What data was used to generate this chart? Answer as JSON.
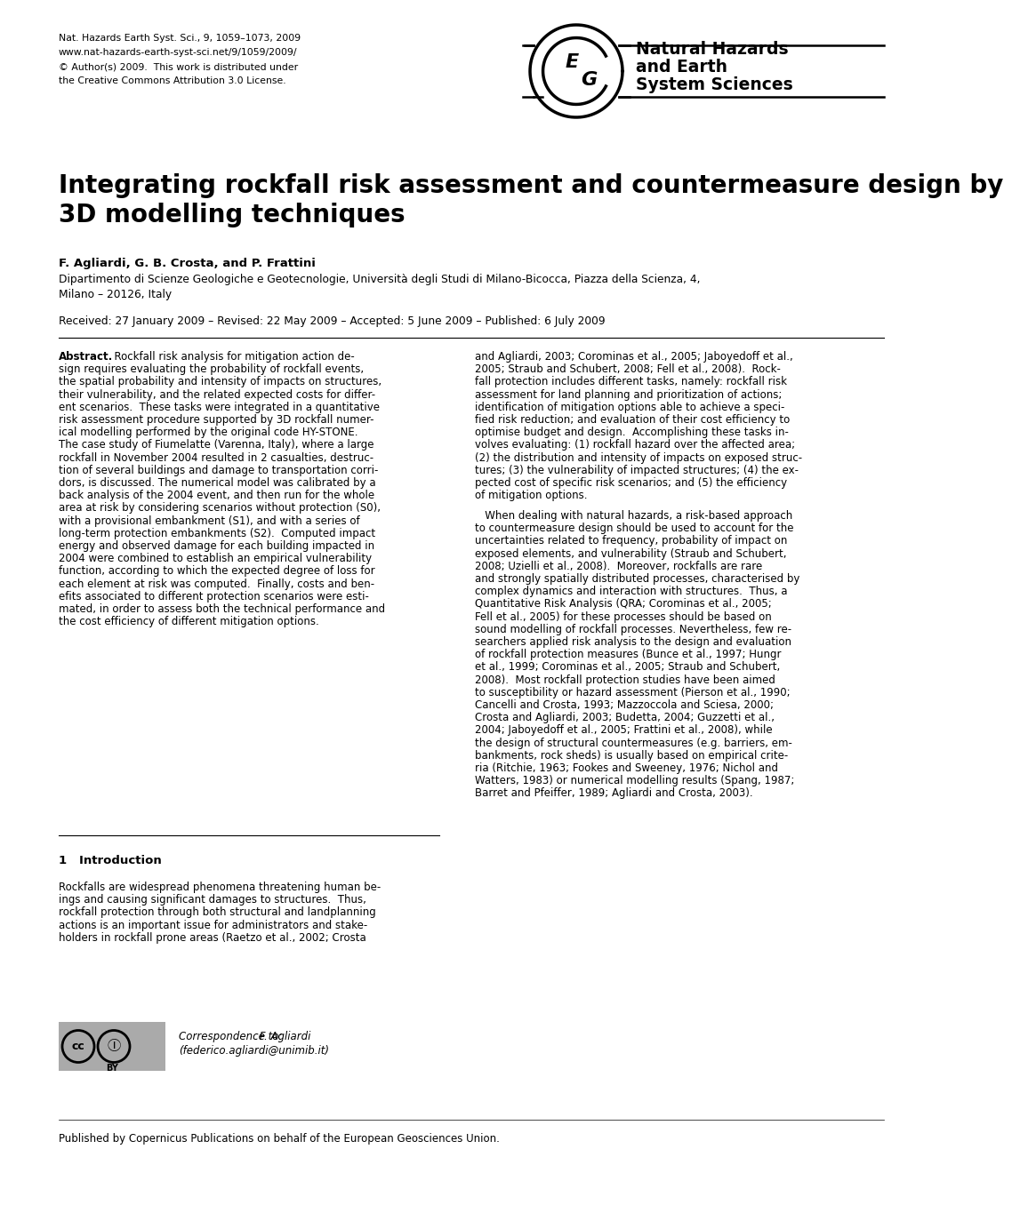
{
  "background_color": "#ffffff",
  "header_left_lines": [
    "Nat. Hazards Earth Syst. Sci., 9, 1059–1073, 2009",
    "www.nat-hazards-earth-syst-sci.net/9/1059/2009/",
    "© Author(s) 2009.  This work is distributed under",
    "the Creative Commons Attribution 3.0 License."
  ],
  "journal_name_lines": [
    "Natural Hazards",
    "and Earth",
    "System Sciences"
  ],
  "paper_title": "Integrating rockfall risk assessment and countermeasure design by\n3D modelling techniques",
  "authors": "F. Agliardi, G. B. Crosta, and P. Frattini",
  "affiliation_lines": [
    "Dipartimento di Scienze Geologiche e Geotecnologie, Università degli Studi di Milano-Bicocca, Piazza della Scienza, 4,",
    "Milano – 20126, Italy"
  ],
  "received_line": "Received: 27 January 2009 – Revised: 22 May 2009 – Accepted: 5 June 2009 – Published: 6 July 2009",
  "abstract_label": "Abstract.",
  "abstract_left_rest": "  Rockfall risk analysis for mitigation action de-\nsign requires evaluating the probability of rockfall events,\nthe spatial probability and intensity of impacts on structures,\ntheir vulnerability, and the related expected costs for differ-\nent scenarios.  These tasks were integrated in a quantitative\nrisk assessment procedure supported by 3D rockfall numer-\nical modelling performed by the original code HY-STONE.\nThe case study of Fiumelatte (Varenna, Italy), where a large\nrockfall in November 2004 resulted in 2 casualties, destruc-\ntion of several buildings and damage to transportation corri-\ndors, is discussed. The numerical model was calibrated by a\nback analysis of the 2004 event, and then run for the whole\narea at risk by considering scenarios without protection (S0),\nwith a provisional embankment (S1), and with a series of\nlong-term protection embankments (S2).  Computed impact\nenergy and observed damage for each building impacted in\n2004 were combined to establish an empirical vulnerability\nfunction, according to which the expected degree of loss for\neach element at risk was computed.  Finally, costs and ben-\nefits associated to different protection scenarios were esti-\nmated, in order to assess both the technical performance and\nthe cost efficiency of different mitigation options.",
  "abstract_right": "and Agliardi, 2003; Corominas et al., 2005; Jaboyedoff et al.,\n2005; Straub and Schubert, 2008; Fell et al., 2008).  Rock-\nfall protection includes different tasks, namely: rockfall risk\nassessment for land planning and prioritization of actions;\nidentification of mitigation options able to achieve a speci-\nfied risk reduction; and evaluation of their cost efficiency to\noptimise budget and design.  Accomplishing these tasks in-\nvolves evaluating: (1) rockfall hazard over the affected area;\n(2) the distribution and intensity of impacts on exposed struc-\ntures; (3) the vulnerability of impacted structures; (4) the ex-\npected cost of specific risk scenarios; and (5) the efficiency\nof mitigation options.\n\n   When dealing with natural hazards, a risk-based approach\nto countermeasure design should be used to account for the\nuncertainties related to frequency, probability of impact on\nexposed elements, and vulnerability (Straub and Schubert,\n2008; Uzielli et al., 2008).  Moreover, rockfalls are rare\nand strongly spatially distributed processes, characterised by\ncomplex dynamics and interaction with structures.  Thus, a\nQuantitative Risk Analysis (QRA; Corominas et al., 2005;\nFell et al., 2005) for these processes should be based on\nsound modelling of rockfall processes. Nevertheless, few re-\nsearchers applied risk analysis to the design and evaluation\nof rockfall protection measures (Bunce et al., 1997; Hungr\net al., 1999; Corominas et al., 2005; Straub and Schubert,\n2008).  Most rockfall protection studies have been aimed\nto susceptibility or hazard assessment (Pierson et al., 1990;\nCancelli and Crosta, 1993; Mazzoccola and Sciesa, 2000;\nCrosta and Agliardi, 2003; Budetta, 2004; Guzzetti et al.,\n2004; Jaboyedoff et al., 2005; Frattini et al., 2008), while\nthe design of structural countermeasures (e.g. barriers, em-\nbankments, rock sheds) is usually based on empirical crite-\nria (Ritchie, 1963; Fookes and Sweeney, 1976; Nichol and\nWatters, 1983) or numerical modelling results (Spang, 1987;\nBarret and Pfeiffer, 1989; Agliardi and Crosta, 2003).",
  "section1_title": "1   Introduction",
  "section1_left": "Rockfalls are widespread phenomena threatening human be-\nings and causing significant damages to structures.  Thus,\nrockfall protection through both structural and landplanning\nactions is an important issue for administrators and stake-\nholders in rockfall prone areas (Raetzo et al., 2002; Crosta",
  "correspondence_name": "Correspondence to:",
  "correspondence_author": " F. Agliardi",
  "correspondence_email": "(federico.agliardi@unimib.it)",
  "footer_line": "Published by Copernicus Publications on behalf of the European Geosciences Union."
}
